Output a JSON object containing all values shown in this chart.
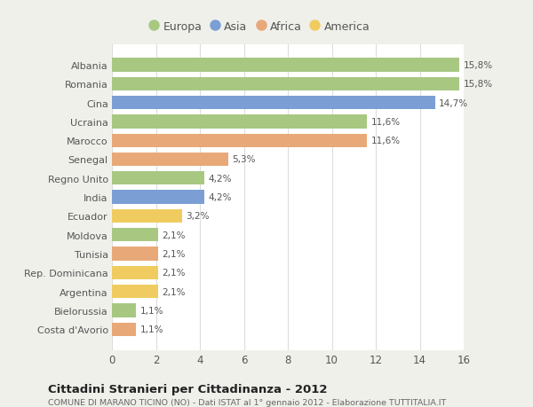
{
  "categories": [
    "Albania",
    "Romania",
    "Cina",
    "Ucraina",
    "Marocco",
    "Senegal",
    "Regno Unito",
    "India",
    "Ecuador",
    "Moldova",
    "Tunisia",
    "Rep. Dominicana",
    "Argentina",
    "Bielorussia",
    "Costa d'Avorio"
  ],
  "values": [
    15.8,
    15.8,
    14.7,
    11.6,
    11.6,
    5.3,
    4.2,
    4.2,
    3.2,
    2.1,
    2.1,
    2.1,
    2.1,
    1.1,
    1.1
  ],
  "labels": [
    "15,8%",
    "15,8%",
    "14,7%",
    "11,6%",
    "11,6%",
    "5,3%",
    "4,2%",
    "4,2%",
    "3,2%",
    "2,1%",
    "2,1%",
    "2,1%",
    "2,1%",
    "1,1%",
    "1,1%"
  ],
  "continents": [
    "Europa",
    "Europa",
    "Asia",
    "Europa",
    "Africa",
    "Africa",
    "Europa",
    "Asia",
    "America",
    "Europa",
    "Africa",
    "America",
    "America",
    "Europa",
    "Africa"
  ],
  "continent_colors": {
    "Europa": "#a8c882",
    "Asia": "#7b9fd4",
    "Africa": "#e8a878",
    "America": "#f0cc60"
  },
  "legend_order": [
    "Europa",
    "Asia",
    "Africa",
    "America"
  ],
  "title": "Cittadini Stranieri per Cittadinanza - 2012",
  "subtitle": "COMUNE DI MARANO TICINO (NO) - Dati ISTAT al 1° gennaio 2012 - Elaborazione TUTTITALIA.IT",
  "xlim": [
    0,
    16
  ],
  "xticks": [
    0,
    2,
    4,
    6,
    8,
    10,
    12,
    14,
    16
  ],
  "outer_background": "#f0f0eb",
  "inner_background": "#ffffff",
  "grid_color": "#dddddd",
  "bar_height": 0.72,
  "label_fontsize": 7.5,
  "ytick_fontsize": 8.0,
  "xtick_fontsize": 8.5,
  "legend_fontsize": 9.0
}
